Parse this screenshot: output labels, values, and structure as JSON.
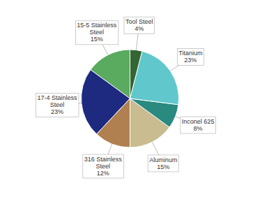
{
  "chart_data": {
    "type": "pie",
    "categories": [
      "15-5 Stainless\nSteel\n15%",
      "17-4 Stainless\nSteel\n23%",
      "316 Stainless\nSteel\n12%",
      "Aluminum\n15%",
      "Inconel 625\n8%",
      "Titanium\n23%",
      "Tool Steel\n4%"
    ],
    "values": [
      15,
      23,
      12,
      15,
      8,
      23,
      4
    ],
    "colors": [
      "#5aaa5f",
      "#1e2a80",
      "#b08050",
      "#c8bc90",
      "#2a8a80",
      "#60c8cc",
      "#336633"
    ]
  }
}
